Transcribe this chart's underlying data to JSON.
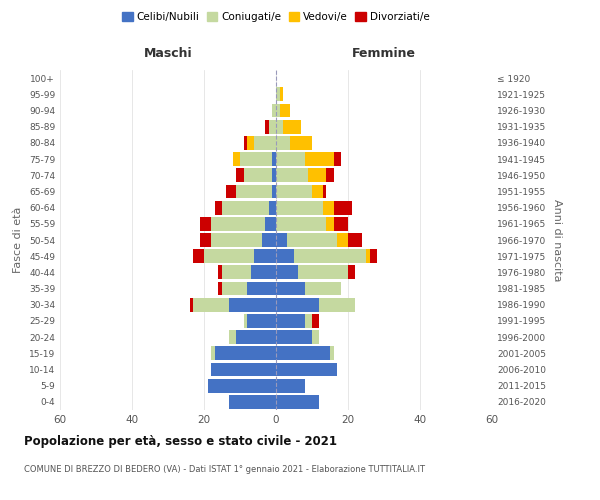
{
  "age_groups": [
    "0-4",
    "5-9",
    "10-14",
    "15-19",
    "20-24",
    "25-29",
    "30-34",
    "35-39",
    "40-44",
    "45-49",
    "50-54",
    "55-59",
    "60-64",
    "65-69",
    "70-74",
    "75-79",
    "80-84",
    "85-89",
    "90-94",
    "95-99",
    "100+"
  ],
  "birth_years": [
    "2016-2020",
    "2011-2015",
    "2006-2010",
    "2001-2005",
    "1996-2000",
    "1991-1995",
    "1986-1990",
    "1981-1985",
    "1976-1980",
    "1971-1975",
    "1966-1970",
    "1961-1965",
    "1956-1960",
    "1951-1955",
    "1946-1950",
    "1941-1945",
    "1936-1940",
    "1931-1935",
    "1926-1930",
    "1921-1925",
    "≤ 1920"
  ],
  "maschi": {
    "celibi": [
      13,
      19,
      18,
      17,
      11,
      8,
      13,
      8,
      7,
      6,
      4,
      3,
      2,
      1,
      1,
      1,
      0,
      0,
      0,
      0,
      0
    ],
    "coniugati": [
      0,
      0,
      0,
      1,
      2,
      1,
      10,
      7,
      8,
      14,
      14,
      15,
      13,
      10,
      8,
      9,
      6,
      2,
      1,
      0,
      0
    ],
    "vedovi": [
      0,
      0,
      0,
      0,
      0,
      0,
      0,
      0,
      0,
      0,
      0,
      0,
      0,
      0,
      0,
      2,
      2,
      0,
      0,
      0,
      0
    ],
    "divorziati": [
      0,
      0,
      0,
      0,
      0,
      0,
      1,
      1,
      1,
      3,
      3,
      3,
      2,
      3,
      2,
      0,
      1,
      1,
      0,
      0,
      0
    ]
  },
  "femmine": {
    "nubili": [
      12,
      8,
      17,
      15,
      10,
      8,
      12,
      8,
      6,
      5,
      3,
      0,
      0,
      0,
      0,
      0,
      0,
      0,
      0,
      0,
      0
    ],
    "coniugate": [
      0,
      0,
      0,
      1,
      2,
      2,
      10,
      10,
      14,
      20,
      14,
      14,
      13,
      10,
      9,
      8,
      4,
      2,
      1,
      1,
      0
    ],
    "vedove": [
      0,
      0,
      0,
      0,
      0,
      0,
      0,
      0,
      0,
      1,
      3,
      2,
      3,
      3,
      5,
      8,
      6,
      5,
      3,
      1,
      0
    ],
    "divorziate": [
      0,
      0,
      0,
      0,
      0,
      2,
      0,
      0,
      2,
      2,
      4,
      4,
      5,
      1,
      2,
      2,
      0,
      0,
      0,
      0,
      0
    ]
  },
  "colors": {
    "celibi": "#4472c4",
    "coniugati": "#c5d9a0",
    "vedovi": "#ffc000",
    "divorziati": "#cc0000"
  },
  "title": "Popolazione per età, sesso e stato civile - 2021",
  "subtitle": "COMUNE DI BREZZO DI BEDERO (VA) - Dati ISTAT 1° gennaio 2021 - Elaborazione TUTTITALIA.IT",
  "xlabel_left": "Maschi",
  "xlabel_right": "Femmine",
  "ylabel_left": "Fasce di età",
  "ylabel_right": "Anni di nascita",
  "legend_labels": [
    "Celibi/Nubili",
    "Coniugati/e",
    "Vedovi/e",
    "Divorziati/e"
  ],
  "xlim": 60,
  "background_color": "#ffffff"
}
